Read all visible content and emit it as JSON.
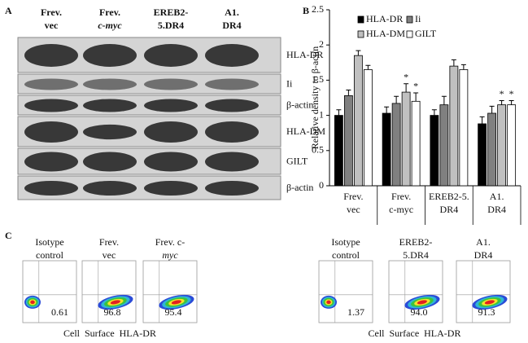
{
  "panel_a": {
    "label": "A",
    "lanes": [
      [
        "Frev.",
        "vec"
      ],
      [
        "Frev.",
        "c-myc"
      ],
      [
        "EREB2-",
        "5.DR4"
      ],
      [
        "A1.",
        "DR4"
      ]
    ],
    "rows": [
      "HLA-DR",
      "Ii",
      "β-actin",
      "HLA-DM",
      "GILT",
      "β-actin"
    ]
  },
  "panel_b": {
    "label": "B"
  },
  "chart_data": {
    "type": "bar",
    "y_label": "Relative density to β-actin",
    "categories": [
      [
        "Frev.",
        "vec"
      ],
      [
        "Frev.",
        "c-myc"
      ],
      [
        "EREB2-5.",
        "DR4"
      ],
      [
        "A1.",
        "DR4"
      ]
    ],
    "series": [
      {
        "name": "HLA-DR",
        "color": "#000000",
        "values": [
          1.0,
          1.03,
          1.0,
          0.88
        ],
        "errors": [
          0.08,
          0.09,
          0.08,
          0.1
        ],
        "marks": [
          null,
          null,
          null,
          null
        ]
      },
      {
        "name": "Ii",
        "color": "#808080",
        "values": [
          1.28,
          1.17,
          1.15,
          1.03
        ],
        "errors": [
          0.08,
          0.1,
          0.12,
          0.1
        ],
        "marks": [
          null,
          null,
          null,
          null
        ]
      },
      {
        "name": "HLA-DM",
        "color": "#c0c0c0",
        "values": [
          1.85,
          1.33,
          1.7,
          1.15
        ],
        "errors": [
          0.07,
          0.12,
          0.09,
          0.06
        ],
        "marks": [
          null,
          "*",
          null,
          "*"
        ]
      },
      {
        "name": "GILT",
        "color": "#ffffff",
        "values": [
          1.65,
          1.2,
          1.65,
          1.15
        ],
        "errors": [
          0.06,
          0.12,
          0.07,
          0.06
        ],
        "marks": [
          null,
          "*",
          null,
          "*"
        ]
      }
    ],
    "ylim": [
      0,
      2.5
    ],
    "yticks": [
      0,
      0.5,
      1,
      1.5,
      2,
      2.5
    ],
    "legend": "top"
  },
  "panel_c": {
    "label": "C",
    "groups": [
      {
        "axis_label": "Cell  Surface  HLA-DR",
        "plots": [
          {
            "title": [
              "Isotype",
              "control"
            ],
            "value": "0.61"
          },
          {
            "title": [
              "Frev.",
              "vec"
            ],
            "value": "96.8"
          },
          {
            "title": [
              "Frev. c-",
              "myc"
            ],
            "value": "95.4"
          }
        ]
      },
      {
        "axis_label": "Cell  Surface  HLA-DR",
        "plots": [
          {
            "title": [
              "Isotype",
              "control"
            ],
            "value": "1.37"
          },
          {
            "title": [
              "EREB2-",
              "5.DR4"
            ],
            "value": "94.0"
          },
          {
            "title": [
              "A1.",
              "DR4"
            ],
            "value": "91.3"
          }
        ]
      }
    ]
  }
}
